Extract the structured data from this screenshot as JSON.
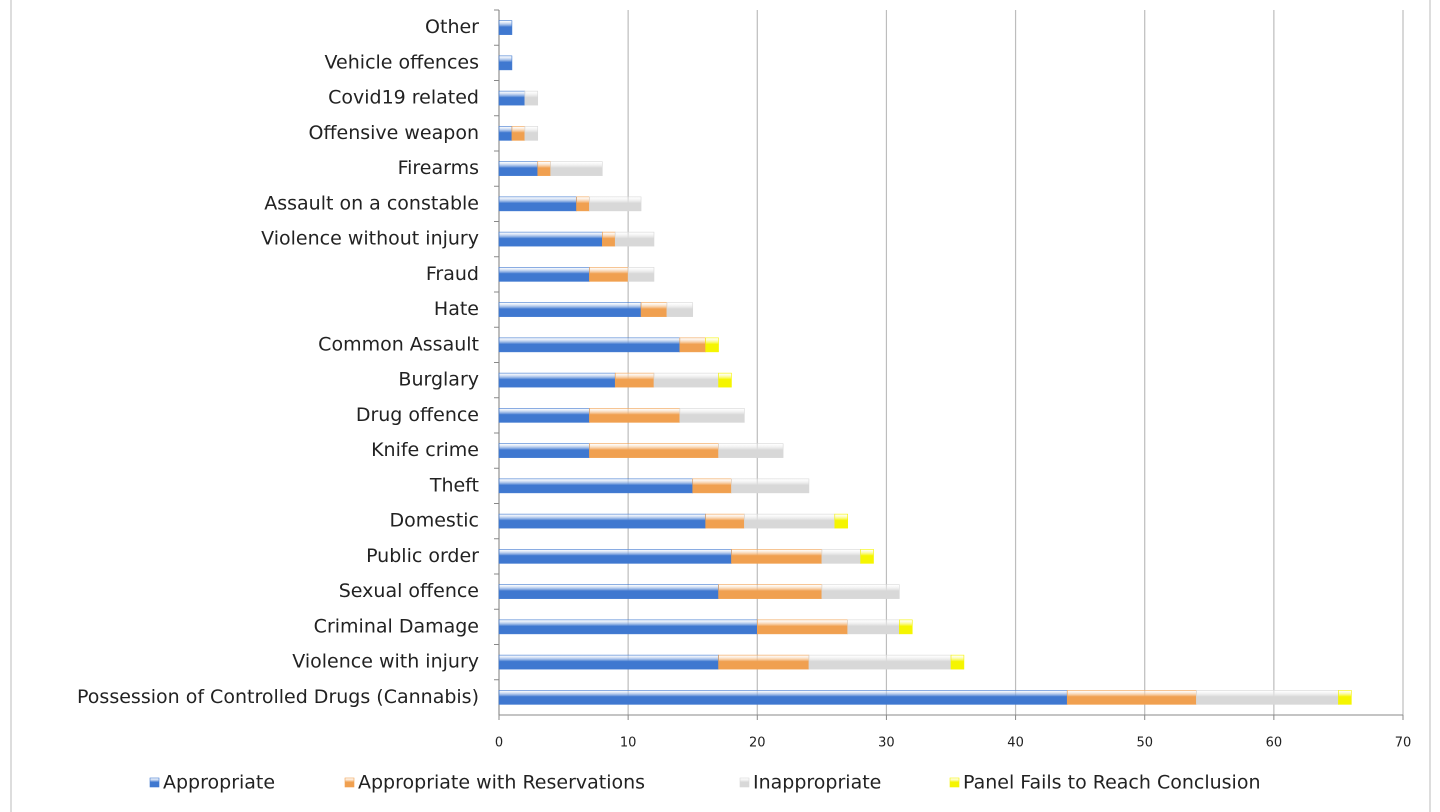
{
  "chart_data": {
    "type": "bar",
    "orientation": "horizontal",
    "stacked": true,
    "categories": [
      "Other",
      "Vehicle offences",
      "Covid19 related",
      "Offensive weapon",
      "Firearms",
      "Assault on a constable",
      "Violence without injury",
      "Fraud",
      "Hate",
      "Common Assault",
      "Burglary",
      "Drug offence",
      "Knife crime",
      "Theft",
      "Domestic",
      "Public order",
      "Sexual offence",
      "Criminal Damage",
      "Violence with injury",
      "Possession of Controlled Drugs (Cannabis)"
    ],
    "series": [
      {
        "name": "Appropriate",
        "color": "#3f78d0",
        "values": [
          1,
          1,
          2,
          1,
          3,
          6,
          8,
          7,
          11,
          14,
          9,
          7,
          7,
          15,
          16,
          18,
          17,
          20,
          17,
          44
        ]
      },
      {
        "name": "Appropriate with Reservations",
        "color": "#f0a050",
        "values": [
          0,
          0,
          0,
          1,
          1,
          1,
          1,
          3,
          2,
          2,
          3,
          7,
          10,
          3,
          3,
          7,
          8,
          7,
          7,
          10
        ]
      },
      {
        "name": "Inappropriate",
        "color": "#d8d8d8",
        "values": [
          0,
          0,
          1,
          1,
          4,
          4,
          3,
          2,
          2,
          0,
          5,
          5,
          5,
          6,
          7,
          3,
          6,
          4,
          11,
          11
        ]
      },
      {
        "name": "Panel Fails to Reach Conclusion",
        "color": "#f5f500",
        "values": [
          0,
          0,
          0,
          0,
          0,
          0,
          0,
          0,
          0,
          1,
          1,
          0,
          0,
          0,
          1,
          1,
          0,
          1,
          1,
          1
        ]
      }
    ],
    "xlim": [
      0,
      70
    ],
    "xticks": [
      0,
      10,
      20,
      30,
      40,
      50,
      60,
      70
    ],
    "grid": true,
    "legend": "bottom"
  }
}
